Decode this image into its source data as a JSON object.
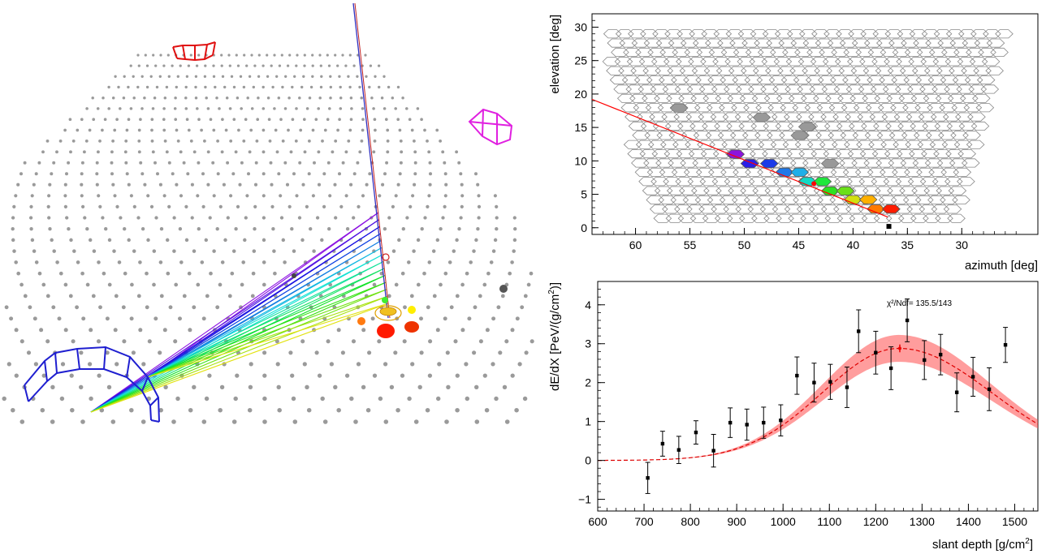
{
  "colors": {
    "pixel_outline": "#888888",
    "fit_line": "#ff0000",
    "error_band": "#ff4d4d",
    "telescope_blue": "#1f1fd0",
    "telescope_red": "#e01010",
    "telescope_magenta": "#e020e0",
    "station_dot": "#9a9a9a"
  },
  "chart_data": [
    {
      "type": "scatter",
      "xlabel": "azimuth  [deg]",
      "ylabel": "elevation  [deg]",
      "xlim": [
        64,
        23
      ],
      "ylim": [
        -1,
        32
      ],
      "xticks": [
        "60",
        "55",
        "50",
        "45",
        "40",
        "35",
        "30"
      ],
      "yticks": [
        "0",
        "5",
        "10",
        "15",
        "20",
        "25",
        "30"
      ],
      "fit_line": [
        [
          64.0,
          19.2
        ],
        [
          36.8,
          1.6
        ]
      ],
      "fit_point": [
        43.6,
        6.6
      ],
      "triggered_pixels": [
        {
          "az": 50.8,
          "el": 11.0,
          "color": "#8c14dc"
        },
        {
          "az": 49.5,
          "el": 9.6,
          "color": "#2a1fe8"
        },
        {
          "az": 47.7,
          "el": 9.6,
          "color": "#1c3ae8"
        },
        {
          "az": 46.3,
          "el": 8.3,
          "color": "#1f78e8"
        },
        {
          "az": 44.9,
          "el": 8.3,
          "color": "#1faee8"
        },
        {
          "az": 44.2,
          "el": 6.9,
          "color": "#12d8c4"
        },
        {
          "az": 42.8,
          "el": 6.9,
          "color": "#1ee83c"
        },
        {
          "az": 42.1,
          "el": 5.5,
          "color": "#2ee022"
        },
        {
          "az": 40.7,
          "el": 5.5,
          "color": "#6ae018"
        },
        {
          "az": 40.0,
          "el": 4.2,
          "color": "#d2e010"
        },
        {
          "az": 38.6,
          "el": 4.2,
          "color": "#ffb000"
        },
        {
          "az": 37.9,
          "el": 2.8,
          "color": "#ff7a00"
        },
        {
          "az": 36.5,
          "el": 2.8,
          "color": "#ff1c00"
        }
      ],
      "noise_pixels": [
        {
          "az": 56.0,
          "el": 17.9
        },
        {
          "az": 48.4,
          "el": 16.5
        },
        {
          "az": 44.2,
          "el": 15.1
        },
        {
          "az": 44.9,
          "el": 13.8
        },
        {
          "az": 42.1,
          "el": 9.6
        }
      ],
      "marker": [
        36.7,
        0.2
      ]
    },
    {
      "type": "scatter",
      "xlabel": "slant depth [g/cm",
      "xlabel_sup": "2",
      "xlabel_end": "]",
      "ylabel": "dE/dX [PeV/(g/cm",
      "ylabel_sup": "2",
      "ylabel_end": ")]",
      "annotation": "χ²/Ndf=  135.5/143",
      "xlim": [
        600,
        1550
      ],
      "ylim": [
        -1.3,
        4.6
      ],
      "xticks": [
        "600",
        "700",
        "800",
        "900",
        "1000",
        "1100",
        "1200",
        "1300",
        "1400",
        "1500"
      ],
      "yticks": [
        "−1",
        "0",
        "1",
        "2",
        "3",
        "4"
      ],
      "fit": {
        "xmax": 1250,
        "ymax": 2.88,
        "sigma_left": 165,
        "sigma_right": 200
      },
      "band": {
        "low_rel": 0.88,
        "high_rel": 1.12
      },
      "points": [
        {
          "x": 708,
          "y": -0.45,
          "err": 0.4
        },
        {
          "x": 740,
          "y": 0.43,
          "err": 0.32
        },
        {
          "x": 775,
          "y": 0.27,
          "err": 0.35
        },
        {
          "x": 812,
          "y": 0.72,
          "err": 0.3
        },
        {
          "x": 850,
          "y": 0.25,
          "err": 0.42
        },
        {
          "x": 886,
          "y": 0.97,
          "err": 0.38
        },
        {
          "x": 922,
          "y": 0.92,
          "err": 0.4
        },
        {
          "x": 958,
          "y": 0.97,
          "err": 0.4
        },
        {
          "x": 995,
          "y": 1.03,
          "err": 0.4
        },
        {
          "x": 1030,
          "y": 2.18,
          "err": 0.48
        },
        {
          "x": 1067,
          "y": 2.0,
          "err": 0.5
        },
        {
          "x": 1102,
          "y": 2.02,
          "err": 0.45
        },
        {
          "x": 1138,
          "y": 1.88,
          "err": 0.52
        },
        {
          "x": 1163,
          "y": 3.32,
          "err": 0.55
        },
        {
          "x": 1200,
          "y": 2.77,
          "err": 0.55
        },
        {
          "x": 1233,
          "y": 2.37,
          "err": 0.55
        },
        {
          "x": 1268,
          "y": 3.6,
          "err": 0.55
        },
        {
          "x": 1305,
          "y": 2.58,
          "err": 0.5
        },
        {
          "x": 1340,
          "y": 2.72,
          "err": 0.52
        },
        {
          "x": 1375,
          "y": 1.75,
          "err": 0.5
        },
        {
          "x": 1410,
          "y": 2.15,
          "err": 0.5
        },
        {
          "x": 1445,
          "y": 1.83,
          "err": 0.55
        },
        {
          "x": 1480,
          "y": 2.97,
          "err": 0.45
        }
      ],
      "xmax_marker": {
        "x": 1252,
        "y": 2.88,
        "err": 0.1
      }
    }
  ]
}
